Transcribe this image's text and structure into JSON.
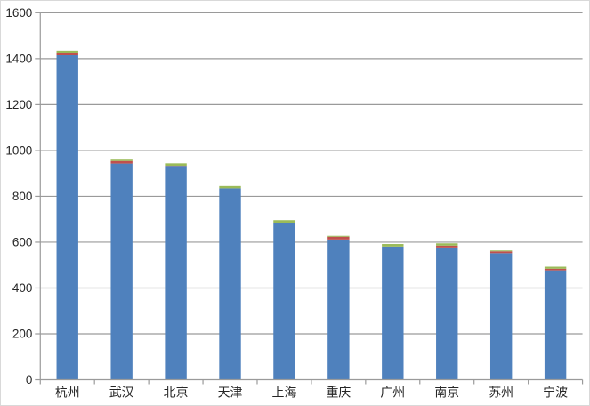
{
  "page": {
    "background": "#ffffff",
    "border_color": "#d9d9d9"
  },
  "chart_data": {
    "type": "bar",
    "stacked": true,
    "title": "",
    "xlabel": "",
    "ylabel": "",
    "categories": [
      "杭州",
      "武汉",
      "北京",
      "天津",
      "上海",
      "重庆",
      "广州",
      "南京",
      "苏州",
      "宁波"
    ],
    "series": [
      {
        "name": "blue",
        "color": "#4F81BD",
        "values": [
          1415,
          943,
          929,
          835,
          685,
          612,
          581,
          577,
          552,
          477
        ]
      },
      {
        "name": "red",
        "color": "#C0504D",
        "values": [
          8,
          11,
          4,
          0,
          0,
          12,
          0,
          8,
          8,
          7
        ]
      },
      {
        "name": "green",
        "color": "#9BBB59",
        "values": [
          12,
          6,
          11,
          10,
          11,
          4,
          11,
          10,
          4,
          9
        ]
      }
    ],
    "totals": [
      1435,
      960,
      944,
      845,
      696,
      628,
      592,
      595,
      564,
      493
    ],
    "ylim": [
      0,
      1600
    ],
    "ytick_step": 200,
    "ytick_labels": [
      "0",
      "200",
      "400",
      "600",
      "800",
      "1000",
      "1200",
      "1400",
      "1600"
    ],
    "grid": true,
    "legend": false,
    "gridline_color": "#9a9a9a",
    "axis_color": "#9a9a9a",
    "label_color": "#262626"
  }
}
